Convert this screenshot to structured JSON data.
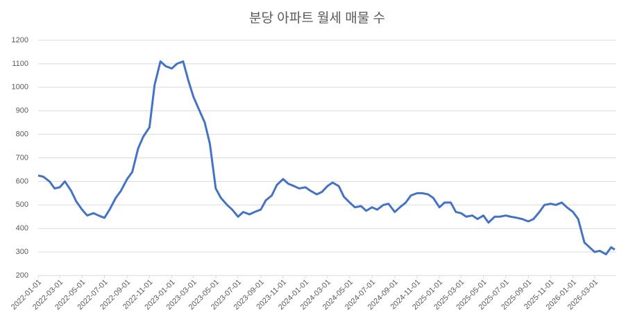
{
  "chart_data": {
    "type": "line",
    "title": "분당 아파트 월세 매물 수",
    "x": [
      "2022-01-01",
      "2022-01-15",
      "2022-02-01",
      "2022-02-15",
      "2022-03-01",
      "2022-03-15",
      "2022-04-01",
      "2022-04-15",
      "2022-05-01",
      "2022-05-15",
      "2022-06-01",
      "2022-06-15",
      "2022-07-01",
      "2022-07-15",
      "2022-08-01",
      "2022-08-15",
      "2022-09-01",
      "2022-09-15",
      "2022-10-01",
      "2022-10-15",
      "2022-11-01",
      "2022-11-15",
      "2022-12-01",
      "2022-12-15",
      "2023-01-01",
      "2023-01-15",
      "2023-02-01",
      "2023-02-15",
      "2023-03-01",
      "2023-03-15",
      "2023-04-01",
      "2023-04-15",
      "2023-05-01",
      "2023-05-15",
      "2023-06-01",
      "2023-06-15",
      "2023-07-01",
      "2023-07-15",
      "2023-08-01",
      "2023-08-15",
      "2023-09-01",
      "2023-09-15",
      "2023-10-01",
      "2023-10-15",
      "2023-11-01",
      "2023-11-15",
      "2023-12-01",
      "2023-12-15",
      "2024-01-01",
      "2024-01-15",
      "2024-02-01",
      "2024-02-15",
      "2024-03-01",
      "2024-03-15",
      "2024-04-01",
      "2024-04-15",
      "2024-05-01",
      "2024-05-15",
      "2024-06-01",
      "2024-06-15",
      "2024-07-01",
      "2024-07-15",
      "2024-08-01",
      "2024-08-15",
      "2024-09-01",
      "2024-09-15",
      "2024-10-01",
      "2024-10-15",
      "2024-11-01",
      "2024-11-15",
      "2024-12-01",
      "2024-12-15",
      "2025-01-01",
      "2025-01-15",
      "2025-02-01",
      "2025-02-15",
      "2025-03-01",
      "2025-03-15",
      "2025-04-01",
      "2025-04-15",
      "2025-05-01",
      "2025-05-15",
      "2025-06-01",
      "2025-06-15",
      "2025-07-01",
      "2025-07-15",
      "2025-08-01",
      "2025-08-15",
      "2025-09-01",
      "2025-09-15",
      "2025-10-01",
      "2025-10-15",
      "2025-11-01",
      "2025-11-15",
      "2025-12-01",
      "2025-12-15",
      "2026-01-01",
      "2026-01-15",
      "2026-02-01",
      "2026-02-15",
      "2026-03-01",
      "2026-03-15",
      "2026-04-01",
      "2026-04-15",
      "2026-04-25"
    ],
    "series": [
      {
        "name": "매물 수",
        "color": "#4472c4",
        "values": [
          625,
          620,
          600,
          570,
          575,
          600,
          560,
          515,
          480,
          455,
          465,
          455,
          445,
          480,
          530,
          560,
          610,
          640,
          740,
          790,
          830,
          1010,
          1110,
          1090,
          1080,
          1100,
          1110,
          1030,
          960,
          910,
          850,
          760,
          570,
          530,
          500,
          480,
          450,
          470,
          460,
          470,
          480,
          520,
          540,
          585,
          610,
          590,
          580,
          570,
          575,
          560,
          545,
          555,
          580,
          595,
          580,
          535,
          510,
          490,
          495,
          475,
          490,
          480,
          500,
          505,
          470,
          490,
          510,
          540,
          550,
          550,
          545,
          530,
          490,
          510,
          510,
          470,
          465,
          450,
          455,
          440,
          455,
          425,
          450,
          450,
          455,
          450,
          445,
          440,
          430,
          440,
          470,
          500,
          505,
          500,
          510,
          490,
          470,
          440,
          340,
          320,
          300,
          305,
          290,
          320,
          310
        ]
      }
    ],
    "xlim": [
      "2022-01-01",
      "2026-04-29"
    ],
    "xticks": [
      "2022-01-01",
      "2022-03-01",
      "2022-05-01",
      "2022-07-01",
      "2022-09-01",
      "2022-11-01",
      "2023-01-01",
      "2023-03-01",
      "2023-05-01",
      "2023-07-01",
      "2023-09-01",
      "2023-11-01",
      "2024-01-01",
      "2024-03-01",
      "2024-05-01",
      "2024-07-01",
      "2024-09-01",
      "2024-11-01",
      "2025-01-01",
      "2025-03-01",
      "2025-05-01",
      "2025-07-01",
      "2025-09-01",
      "2025-11-01",
      "2026-01-01",
      "2026-03-01"
    ],
    "ylim": [
      200,
      1200
    ],
    "yticks": [
      200,
      300,
      400,
      500,
      600,
      700,
      800,
      900,
      1000,
      1100,
      1200
    ],
    "grid": true
  }
}
